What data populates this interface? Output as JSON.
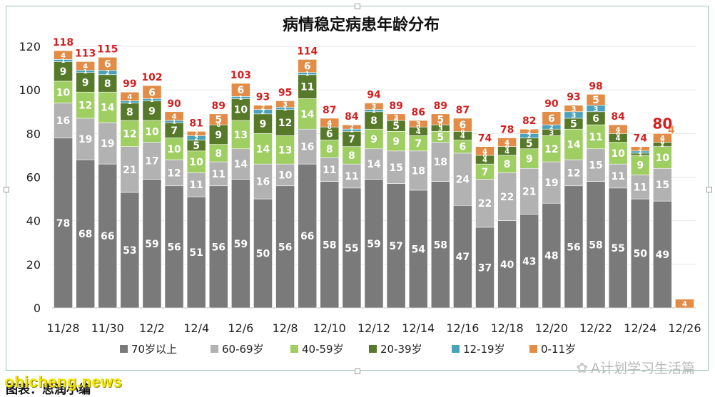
{
  "caption": "图表：思润小编",
  "watermark_left": "ohicheng.news",
  "watermark_right": "A计划学习生活篇",
  "colors": {
    "70岁以上": "#7a7a7a",
    "60-69岁": "#b2b2b2",
    "40-59岁": "#9fce63",
    "20-39岁": "#577a2a",
    "12-19岁": "#4ba3b9",
    "0-11岁": "#e28c47",
    "total_label": "#d21f1f"
  },
  "chart_data": {
    "type": "bar",
    "stacked": true,
    "title": "病情稳定病患年龄分布",
    "xlabel": "",
    "ylabel": "",
    "ylim": [
      0,
      120
    ],
    "yticks": [
      0,
      20,
      40,
      60,
      80,
      100,
      120
    ],
    "grid": true,
    "legend_position": "bottom",
    "categories": [
      "11/28",
      "11/29",
      "11/30",
      "12/1",
      "12/2",
      "12/3",
      "12/4",
      "12/5",
      "12/6",
      "12/7",
      "12/8",
      "12/9",
      "12/10",
      "12/11",
      "12/12",
      "12/13",
      "12/14",
      "12/15",
      "12/16",
      "12/17",
      "12/18",
      "12/19",
      "12/20",
      "12/21",
      "12/22",
      "12/23",
      "12/24",
      "12/25",
      "12/26"
    ],
    "tick_labels": [
      "11/28",
      "",
      "11/30",
      "",
      "12/2",
      "",
      "12/4",
      "",
      "12/6",
      "",
      "12/8",
      "",
      "12/10",
      "",
      "12/12",
      "",
      "12/14",
      "",
      "12/16",
      "",
      "12/18",
      "",
      "12/20",
      "",
      "12/22",
      "",
      "12/24",
      "",
      "12/26"
    ],
    "series": [
      {
        "name": "70岁以上",
        "values": [
          78,
          68,
          66,
          53,
          59,
          56,
          51,
          56,
          59,
          50,
          56,
          66,
          58,
          55,
          59,
          57,
          54,
          58,
          47,
          37,
          40,
          43,
          48,
          56,
          58,
          55,
          50,
          49,
          null
        ]
      },
      {
        "name": "60-69岁",
        "values": [
          16,
          19,
          19,
          21,
          17,
          12,
          11,
          11,
          14,
          16,
          10,
          16,
          11,
          11,
          14,
          15,
          18,
          18,
          24,
          22,
          22,
          21,
          19,
          12,
          15,
          11,
          11,
          15,
          null
        ]
      },
      {
        "name": "40-59岁",
        "values": [
          10,
          12,
          14,
          12,
          10,
          10,
          10,
          8,
          13,
          14,
          13,
          14,
          8,
          8,
          9,
          9,
          7,
          5,
          6,
          7,
          8,
          9,
          12,
          14,
          11,
          10,
          9,
          10,
          null
        ]
      },
      {
        "name": "20-39岁",
        "values": [
          9,
          9,
          8,
          8,
          9,
          7,
          5,
          9,
          10,
          9,
          12,
          11,
          6,
          7,
          8,
          5,
          4,
          3,
          4,
          4,
          4,
          5,
          3,
          5,
          6,
          4,
          1,
          2,
          null
        ]
      },
      {
        "name": "12-19岁",
        "values": [
          1,
          1,
          2,
          1,
          1,
          1,
          2,
          0,
          1,
          2,
          1,
          1,
          0,
          1,
          1,
          0,
          0,
          0,
          0,
          0,
          0,
          2,
          2,
          3,
          3,
          0,
          1,
          0,
          null
        ]
      },
      {
        "name": "0-11岁",
        "values": [
          4,
          4,
          6,
          4,
          6,
          4,
          2,
          5,
          6,
          2,
          3,
          6,
          4,
          2,
          3,
          3,
          3,
          5,
          6,
          4,
          4,
          2,
          6,
          3,
          5,
          4,
          2,
          4,
          4
        ]
      }
    ],
    "totals": [
      118,
      113,
      115,
      99,
      102,
      90,
      81,
      89,
      103,
      93,
      95,
      114,
      87,
      84,
      94,
      89,
      86,
      89,
      87,
      74,
      78,
      82,
      90,
      93,
      98,
      84,
      74,
      80,
      null
    ],
    "emphasized_total_index": 27
  }
}
